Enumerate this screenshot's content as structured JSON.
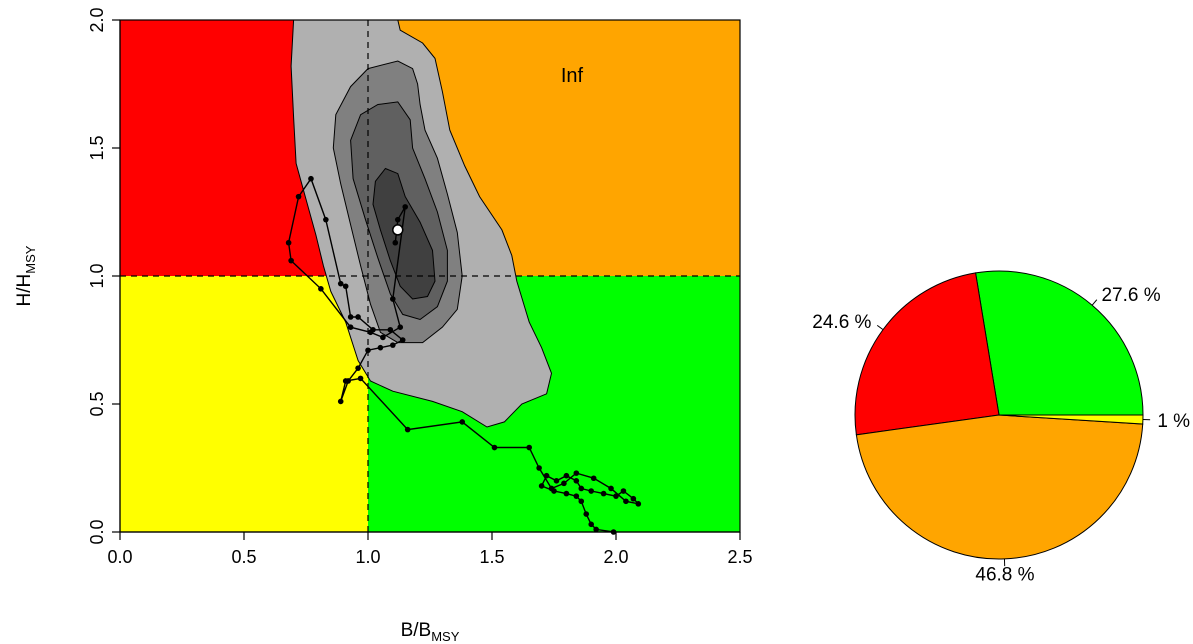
{
  "chart_data": [
    {
      "type": "scatter",
      "subtype": "kobe-phase-plot",
      "xlabel": {
        "main": "B/B",
        "sub": "MSY"
      },
      "ylabel": {
        "main": "H/H",
        "sub": "MSY"
      },
      "xlim": [
        0,
        2.5
      ],
      "ylim": [
        0,
        2.0
      ],
      "x_ticks": [
        "0.0",
        "0.5",
        "1.0",
        "1.5",
        "2.0",
        "2.5"
      ],
      "y_ticks": [
        "0.0",
        "0.5",
        "1.0",
        "1.5",
        "2.0"
      ],
      "reference_lines": {
        "x": 1.0,
        "y": 1.0,
        "style": "dashed"
      },
      "quadrants": [
        {
          "name": "overfished-overfishing",
          "x": [
            0,
            1
          ],
          "y": [
            1,
            2
          ],
          "color": "#ff0000"
        },
        {
          "name": "not-overfished-overfishing",
          "x": [
            1,
            2.5
          ],
          "y": [
            1,
            2
          ],
          "color": "#ffa500"
        },
        {
          "name": "overfished-no-overfishing",
          "x": [
            0,
            1
          ],
          "y": [
            0,
            1
          ],
          "color": "#ffff00"
        },
        {
          "name": "not-overfished-no-overfishing",
          "x": [
            1,
            2.5
          ],
          "y": [
            0,
            1
          ],
          "color": "#00ff00"
        }
      ],
      "annotation": "Inf",
      "contour_levels": [
        {
          "level": 1,
          "color": "#b0b0b0",
          "points": [
            [
              0.7,
              2.0
            ],
            [
              1.12,
              2.0
            ],
            [
              1.13,
              1.96
            ],
            [
              1.22,
              1.91
            ],
            [
              1.27,
              1.85
            ],
            [
              1.3,
              1.72
            ],
            [
              1.33,
              1.57
            ],
            [
              1.39,
              1.43
            ],
            [
              1.45,
              1.31
            ],
            [
              1.54,
              1.18
            ],
            [
              1.58,
              1.08
            ],
            [
              1.6,
              0.98
            ],
            [
              1.65,
              0.82
            ],
            [
              1.7,
              0.72
            ],
            [
              1.74,
              0.62
            ],
            [
              1.72,
              0.54
            ],
            [
              1.62,
              0.5
            ],
            [
              1.55,
              0.43
            ],
            [
              1.48,
              0.41
            ],
            [
              1.38,
              0.47
            ],
            [
              1.26,
              0.51
            ],
            [
              1.1,
              0.55
            ],
            [
              1.01,
              0.59
            ],
            [
              0.96,
              0.67
            ],
            [
              0.91,
              0.82
            ],
            [
              0.85,
              0.94
            ],
            [
              0.82,
              1.04
            ],
            [
              0.79,
              1.16
            ],
            [
              0.75,
              1.3
            ],
            [
              0.71,
              1.44
            ],
            [
              0.7,
              1.62
            ],
            [
              0.69,
              1.82
            ]
          ]
        },
        {
          "level": 2,
          "color": "#808080",
          "points": [
            [
              1.0,
              1.81
            ],
            [
              1.12,
              1.84
            ],
            [
              1.18,
              1.81
            ],
            [
              1.2,
              1.75
            ],
            [
              1.21,
              1.67
            ],
            [
              1.23,
              1.57
            ],
            [
              1.28,
              1.46
            ],
            [
              1.32,
              1.32
            ],
            [
              1.36,
              1.17
            ],
            [
              1.38,
              1.0
            ],
            [
              1.36,
              0.87
            ],
            [
              1.3,
              0.8
            ],
            [
              1.22,
              0.74
            ],
            [
              1.12,
              0.74
            ],
            [
              1.05,
              0.78
            ],
            [
              1.01,
              0.89
            ],
            [
              0.97,
              1.04
            ],
            [
              0.93,
              1.2
            ],
            [
              0.89,
              1.36
            ],
            [
              0.86,
              1.5
            ],
            [
              0.87,
              1.63
            ],
            [
              0.93,
              1.74
            ]
          ]
        },
        {
          "level": 3,
          "color": "#606060",
          "points": [
            [
              1.04,
              1.67
            ],
            [
              1.12,
              1.68
            ],
            [
              1.17,
              1.61
            ],
            [
              1.18,
              1.5
            ],
            [
              1.23,
              1.38
            ],
            [
              1.28,
              1.25
            ],
            [
              1.32,
              1.1
            ],
            [
              1.32,
              0.98
            ],
            [
              1.28,
              0.88
            ],
            [
              1.21,
              0.83
            ],
            [
              1.14,
              0.85
            ],
            [
              1.09,
              0.93
            ],
            [
              1.04,
              1.07
            ],
            [
              0.99,
              1.22
            ],
            [
              0.94,
              1.38
            ],
            [
              0.93,
              1.53
            ],
            [
              0.97,
              1.63
            ]
          ]
        },
        {
          "level": 4,
          "color": "#404040",
          "points": [
            [
              1.07,
              1.42
            ],
            [
              1.12,
              1.4
            ],
            [
              1.15,
              1.31
            ],
            [
              1.21,
              1.21
            ],
            [
              1.26,
              1.1
            ],
            [
              1.27,
              0.98
            ],
            [
              1.24,
              0.92
            ],
            [
              1.18,
              0.91
            ],
            [
              1.13,
              0.96
            ],
            [
              1.09,
              1.06
            ],
            [
              1.05,
              1.18
            ],
            [
              1.02,
              1.28
            ],
            [
              1.03,
              1.37
            ]
          ]
        }
      ],
      "trajectory": [
        [
          1.99,
          0.0
        ],
        [
          1.92,
          0.01
        ],
        [
          1.9,
          0.03
        ],
        [
          1.88,
          0.07
        ],
        [
          1.86,
          0.12
        ],
        [
          1.84,
          0.14
        ],
        [
          1.8,
          0.15
        ],
        [
          1.75,
          0.16
        ],
        [
          1.7,
          0.18
        ],
        [
          1.72,
          0.22
        ],
        [
          1.76,
          0.2
        ],
        [
          1.8,
          0.22
        ],
        [
          1.84,
          0.2
        ],
        [
          1.86,
          0.17
        ],
        [
          1.9,
          0.16
        ],
        [
          1.95,
          0.15
        ],
        [
          2.0,
          0.14
        ],
        [
          2.03,
          0.16
        ],
        [
          2.07,
          0.13
        ],
        [
          2.09,
          0.11
        ],
        [
          2.04,
          0.12
        ],
        [
          1.98,
          0.17
        ],
        [
          1.91,
          0.21
        ],
        [
          1.84,
          0.23
        ],
        [
          1.79,
          0.19
        ],
        [
          1.74,
          0.17
        ],
        [
          1.69,
          0.25
        ],
        [
          1.65,
          0.33
        ],
        [
          1.51,
          0.33
        ],
        [
          1.38,
          0.43
        ],
        [
          1.16,
          0.4
        ],
        [
          0.97,
          0.6
        ],
        [
          0.91,
          0.59
        ],
        [
          0.89,
          0.51
        ],
        [
          0.92,
          0.59
        ],
        [
          0.96,
          0.64
        ],
        [
          1.0,
          0.71
        ],
        [
          1.05,
          0.72
        ],
        [
          1.1,
          0.73
        ],
        [
          1.14,
          0.75
        ],
        [
          1.09,
          0.79
        ],
        [
          1.02,
          0.79
        ],
        [
          0.96,
          0.84
        ],
        [
          0.93,
          0.84
        ],
        [
          0.91,
          0.96
        ],
        [
          0.89,
          0.97
        ],
        [
          0.83,
          1.22
        ],
        [
          0.77,
          1.38
        ],
        [
          0.72,
          1.31
        ],
        [
          0.68,
          1.13
        ],
        [
          0.69,
          1.06
        ],
        [
          0.81,
          0.95
        ],
        [
          0.93,
          0.8
        ],
        [
          1.01,
          0.78
        ],
        [
          1.06,
          0.76
        ],
        [
          1.13,
          0.8
        ],
        [
          1.1,
          0.91
        ],
        [
          1.15,
          1.27
        ],
        [
          1.12,
          1.22
        ],
        [
          1.11,
          1.13
        ]
      ],
      "current_point": [
        1.12,
        1.18
      ]
    },
    {
      "type": "pie",
      "slices": [
        {
          "label": "27.6 %",
          "value": 27.6,
          "color": "#00ff00"
        },
        {
          "label": "24.6 %",
          "value": 24.6,
          "color": "#ff0000"
        },
        {
          "label": "46.8 %",
          "value": 46.8,
          "color": "#ffa500"
        },
        {
          "label": "1 %",
          "value": 1.0,
          "color": "#ffff00"
        }
      ]
    }
  ]
}
